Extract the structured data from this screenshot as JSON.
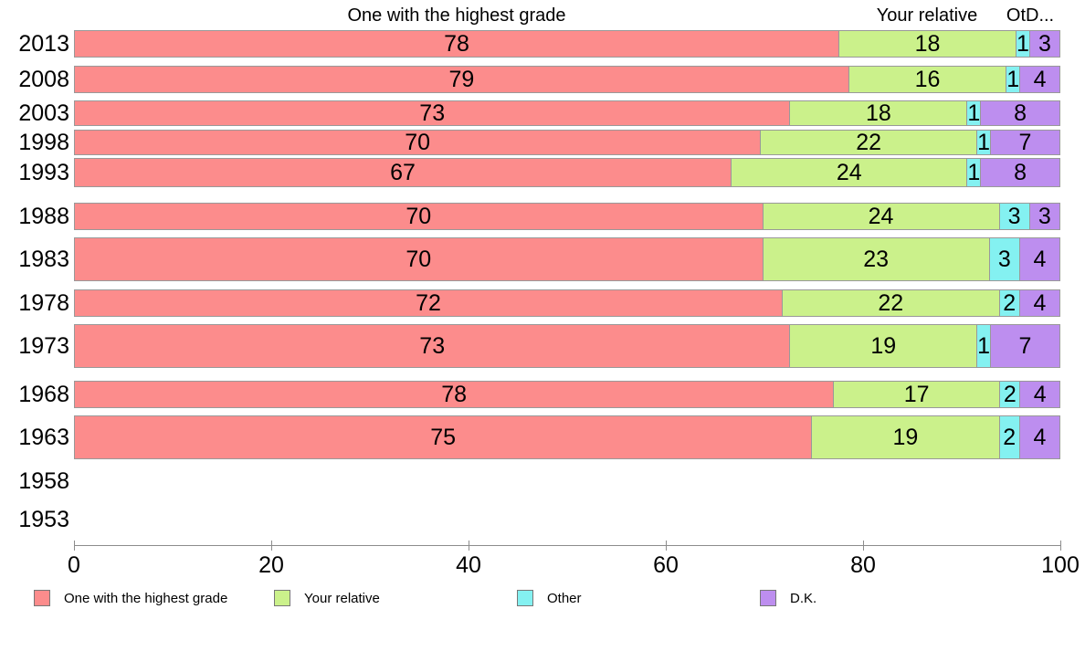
{
  "chart_data": {
    "type": "bar",
    "orientation": "horizontal",
    "stacked": true,
    "title": "",
    "xlabel": "",
    "ylabel": "",
    "xlim": [
      0,
      100
    ],
    "x_ticks": [
      0,
      20,
      40,
      60,
      80,
      100
    ],
    "grid": false,
    "legend_position": "bottom",
    "categories": [
      "2013",
      "2008",
      "2003",
      "1998",
      "1993",
      "1988",
      "1983",
      "1978",
      "1973",
      "1968",
      "1963",
      "1958",
      "1953"
    ],
    "series": [
      {
        "name": "One with the highest grade",
        "color": "#fc8c8c",
        "values": [
          78,
          79,
          73,
          70,
          67,
          70,
          70,
          72,
          73,
          78,
          75,
          null,
          null
        ]
      },
      {
        "name": "Your relative",
        "color": "#cbf18b",
        "values": [
          18,
          16,
          18,
          22,
          24,
          24,
          23,
          22,
          19,
          17,
          19,
          null,
          null
        ]
      },
      {
        "name": "Other",
        "color": "#84f1f1",
        "values": [
          1,
          1,
          1,
          1,
          1,
          3,
          3,
          2,
          1,
          2,
          2,
          null,
          null
        ]
      },
      {
        "name": "D.K.",
        "color": "#bd8eef",
        "values": [
          3,
          4,
          8,
          7,
          8,
          3,
          4,
          4,
          7,
          4,
          4,
          null,
          null
        ]
      }
    ]
  },
  "column_headers": {
    "left": "One with the highest grade",
    "middle": "Your relative",
    "right": "OtD..."
  },
  "legend": {
    "items": [
      {
        "label": "One with the highest grade"
      },
      {
        "label": "Your relative"
      },
      {
        "label": "Other"
      },
      {
        "label": "D.K."
      }
    ]
  }
}
